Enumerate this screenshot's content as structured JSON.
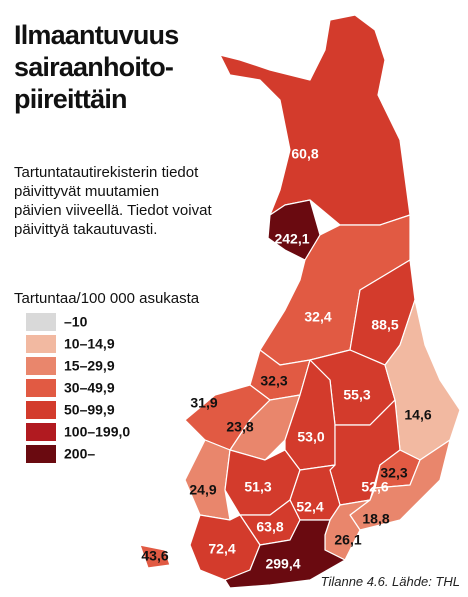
{
  "title_lines": [
    "Ilmaantuvuus",
    "sairaanhoito-",
    "piireittäin"
  ],
  "note_lines": [
    "Tartuntatautirekisterin tiedot",
    "päivittyvät muutamien",
    "päivien viiveellä. Tiedot voivat",
    "päivittyä takautuvasti."
  ],
  "legend": {
    "title": "Tartuntaa/100 000 asukasta",
    "items": [
      {
        "label": "–10",
        "color": "#d9d9d9"
      },
      {
        "label": "10–14,9",
        "color": "#f2b9a1"
      },
      {
        "label": "15–29,9",
        "color": "#e9866c"
      },
      {
        "label": "30–49,9",
        "color": "#e15a43"
      },
      {
        "label": "50–99,9",
        "color": "#d33b2c"
      },
      {
        "label": "100–199,0",
        "color": "#b11a20"
      },
      {
        "label": "200–",
        "color": "#6a0a10"
      }
    ]
  },
  "regions": [
    {
      "label": "60,8",
      "color": "#d33b2c"
    },
    {
      "label": "242,1",
      "color": "#6a0a10"
    },
    {
      "label": "32,4",
      "color": "#e15a43"
    },
    {
      "label": "88,5",
      "color": "#d33b2c"
    },
    {
      "label": "32,3",
      "color": "#e15a43"
    },
    {
      "label": "31,9",
      "color": "#e15a43"
    },
    {
      "label": "23,8",
      "color": "#e9866c"
    },
    {
      "label": "55,3",
      "color": "#d33b2c"
    },
    {
      "label": "53,0",
      "color": "#d33b2c"
    },
    {
      "label": "14,6",
      "color": "#f2b9a1"
    },
    {
      "label": "24,9",
      "color": "#e9866c"
    },
    {
      "label": "51,3",
      "color": "#d33b2c"
    },
    {
      "label": "52,6",
      "color": "#d33b2c"
    },
    {
      "label": "32,3",
      "color": "#e15a43"
    },
    {
      "label": "52,4",
      "color": "#d33b2c"
    },
    {
      "label": "18,8",
      "color": "#e9866c"
    },
    {
      "label": "26,1",
      "color": "#e9866c"
    },
    {
      "label": "63,8",
      "color": "#d33b2c"
    },
    {
      "label": "72,4",
      "color": "#d33b2c"
    },
    {
      "label": "299,4",
      "color": "#6a0a10"
    },
    {
      "label": "43,6",
      "color": "#e15a43"
    }
  ],
  "source": "Tilanne 4.6. Lähde: THL"
}
